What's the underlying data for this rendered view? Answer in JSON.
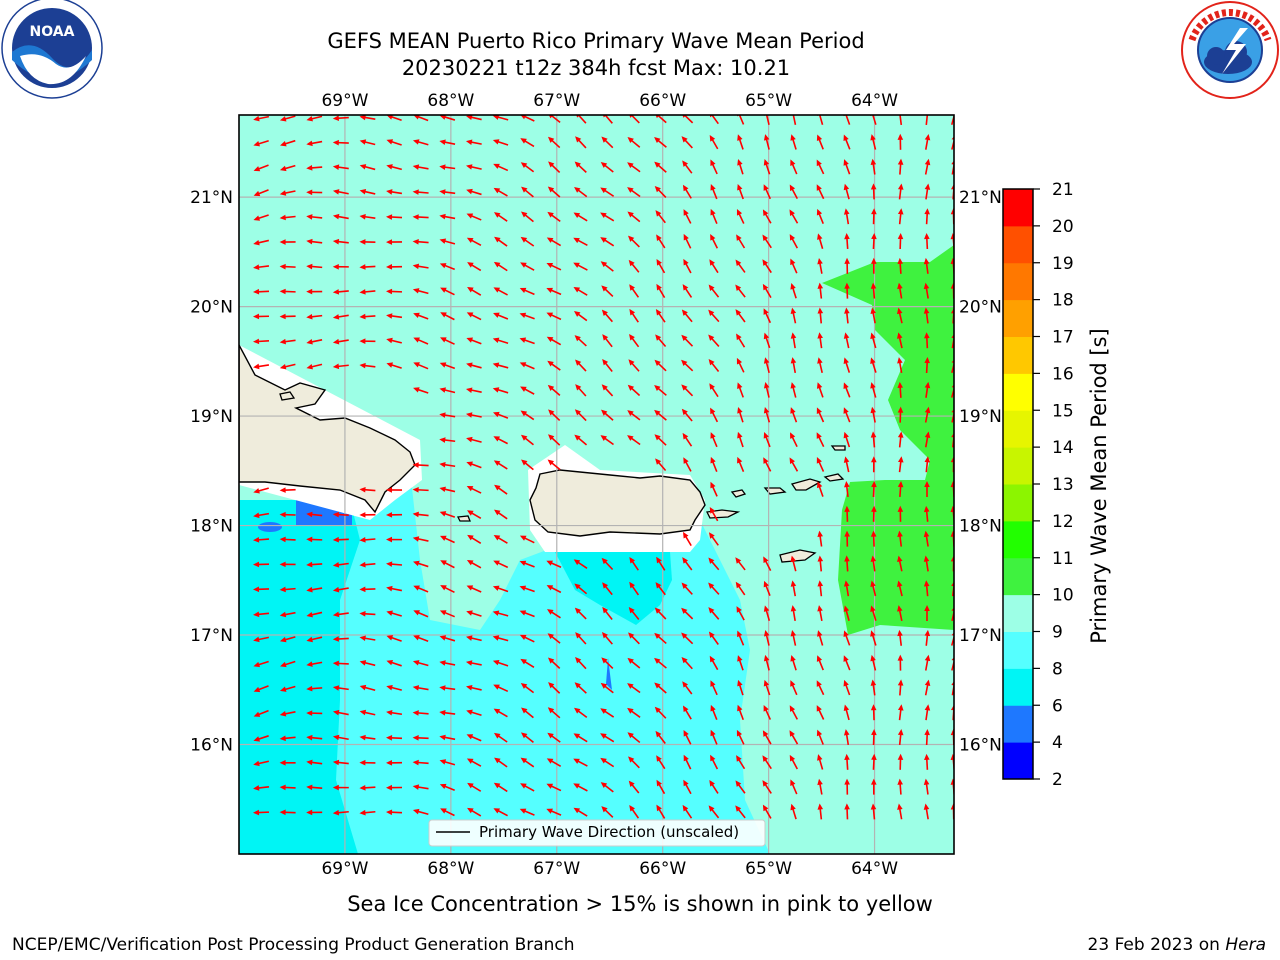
{
  "title": {
    "line1": "GEFS MEAN Puerto Rico Primary Wave Mean Period",
    "line2": "20230221 t12z 384h fcst   Max: 10.21"
  },
  "logos": {
    "left": {
      "name": "NOAA",
      "ring_text": "NATIONAL OCEANIC AND ATMOSPHERIC ADMINISTRATION · U.S. DEPARTMENT OF COMMERCE",
      "color": "#1c3f94"
    },
    "right": {
      "name": "NATIONAL WEATHER SERVICE",
      "color": "#e2231a"
    }
  },
  "map": {
    "lon_labels": [
      "69°W",
      "68°W",
      "67°W",
      "66°W",
      "65°W",
      "64°W"
    ],
    "lat_labels": [
      "21°N",
      "20°N",
      "19°N",
      "18°N",
      "17°N",
      "16°N"
    ],
    "lon_values": [
      -69,
      -68,
      -67,
      -66,
      -65,
      -64
    ],
    "lat_values": [
      21,
      20,
      19,
      18,
      17,
      16
    ],
    "lon_range": [
      -70,
      -63.25
    ],
    "lat_range": [
      15,
      21.75
    ],
    "legend_entry": "Primary Wave Direction (unscaled)",
    "arrow_color": "#ff0000",
    "land_color": "#efecdc"
  },
  "colorbar": {
    "label": "Primary Wave Mean Period [s]",
    "ticks": [
      "21",
      "20",
      "19",
      "18",
      "17",
      "16",
      "15",
      "14",
      "13",
      "12",
      "11",
      "10",
      "9",
      "8",
      "6",
      "4",
      "2"
    ],
    "levels": [
      {
        "from": 2,
        "to": 4,
        "color": "#0000ff"
      },
      {
        "from": 4,
        "to": 6,
        "color": "#1e78ff"
      },
      {
        "from": 6,
        "to": 8,
        "color": "#00f5f5"
      },
      {
        "from": 8,
        "to": 9,
        "color": "#55ffff"
      },
      {
        "from": 9,
        "to": 10,
        "color": "#9dffe6"
      },
      {
        "from": 10,
        "to": 11,
        "color": "#3ff23f"
      },
      {
        "from": 11,
        "to": 12,
        "color": "#22ff00"
      },
      {
        "from": 12,
        "to": 13,
        "color": "#8cf500"
      },
      {
        "from": 13,
        "to": 14,
        "color": "#c8f500"
      },
      {
        "from": 14,
        "to": 15,
        "color": "#e6f500"
      },
      {
        "from": 15,
        "to": 16,
        "color": "#ffff00"
      },
      {
        "from": 16,
        "to": 17,
        "color": "#ffc800"
      },
      {
        "from": 17,
        "to": 18,
        "color": "#ffa000"
      },
      {
        "from": 18,
        "to": 19,
        "color": "#ff7800"
      },
      {
        "from": 19,
        "to": 20,
        "color": "#ff5000"
      },
      {
        "from": 20,
        "to": 21,
        "color": "#ff0000"
      }
    ]
  },
  "sea_ice_note": "Sea Ice Concentration > 15% is shown in pink to yellow",
  "footer": {
    "left": "NCEP/EMC/Verification Post Processing Product Generation Branch",
    "right_prefix": "23 Feb 2023 on ",
    "right_italic": "Hera"
  }
}
